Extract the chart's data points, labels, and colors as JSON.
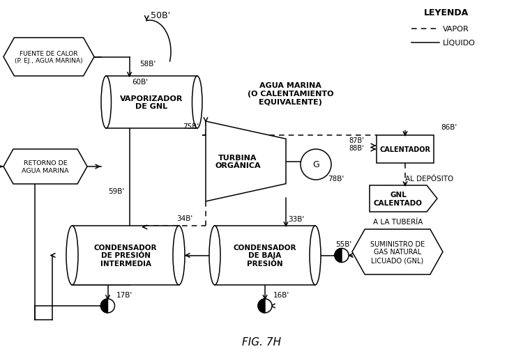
{
  "title": "FIG. 7H",
  "bg_color": "#ffffff",
  "legend_title": "LEYENDA",
  "legend_vapor": "VAPOR",
  "legend_liquido": "LÍQUIDO",
  "agua_marina_text": "AGUA MARINA\n(O CALENTAMIENTO\nEQUIVALENTE)",
  "al_deposito": "AL DEPÓSITO",
  "a_la_tuberia": "A LA TUBERÍA",
  "suministro_gnl": "SUMINISTRO DE\nGAS NATURAL\nLICUADO (GNL)"
}
